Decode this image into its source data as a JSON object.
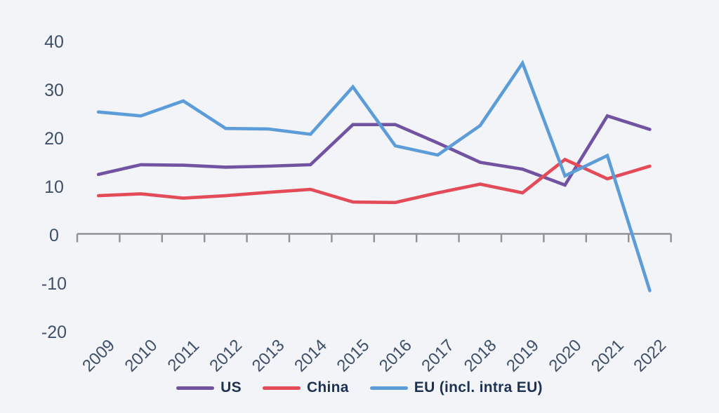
{
  "page": {
    "background_color": "#f2f4f8"
  },
  "chart_data": {
    "type": "line",
    "x": [
      "2009",
      "2010",
      "2011",
      "2012",
      "2013",
      "2014",
      "2015",
      "2016",
      "2017",
      "2018",
      "2019",
      "2020",
      "2021",
      "2022"
    ],
    "series": [
      {
        "name": "US",
        "color": "#7253a2",
        "values": [
          12.5,
          14.5,
          14.4,
          14.0,
          14.2,
          14.5,
          22.8,
          22.8,
          19.0,
          15.0,
          13.6,
          10.3,
          24.6,
          21.8
        ]
      },
      {
        "name": "China",
        "color": "#e34b58",
        "values": [
          8.1,
          8.5,
          7.6,
          8.1,
          8.8,
          9.4,
          6.8,
          6.7,
          8.7,
          10.5,
          8.7,
          15.6,
          11.6,
          14.2
        ]
      },
      {
        "name": "EU (incl. intra EU)",
        "color": "#5c9cd9",
        "values": [
          25.4,
          24.6,
          27.7,
          22.0,
          21.9,
          20.8,
          30.6,
          18.4,
          16.5,
          22.6,
          35.5,
          12.2,
          16.4,
          -11.5
        ]
      }
    ],
    "title": "",
    "xlabel": "",
    "ylabel": "",
    "ylim": [
      -20,
      40
    ],
    "yticks": [
      40,
      30,
      20,
      10,
      0,
      -10,
      -20
    ],
    "x_tick_label_rotation": 45,
    "grid": false,
    "legend_position": "bottom-center",
    "style": {
      "axis_color": "#8e9196",
      "tick_label_color": "#3f5069",
      "legend_text_color": "#1d3253"
    }
  }
}
